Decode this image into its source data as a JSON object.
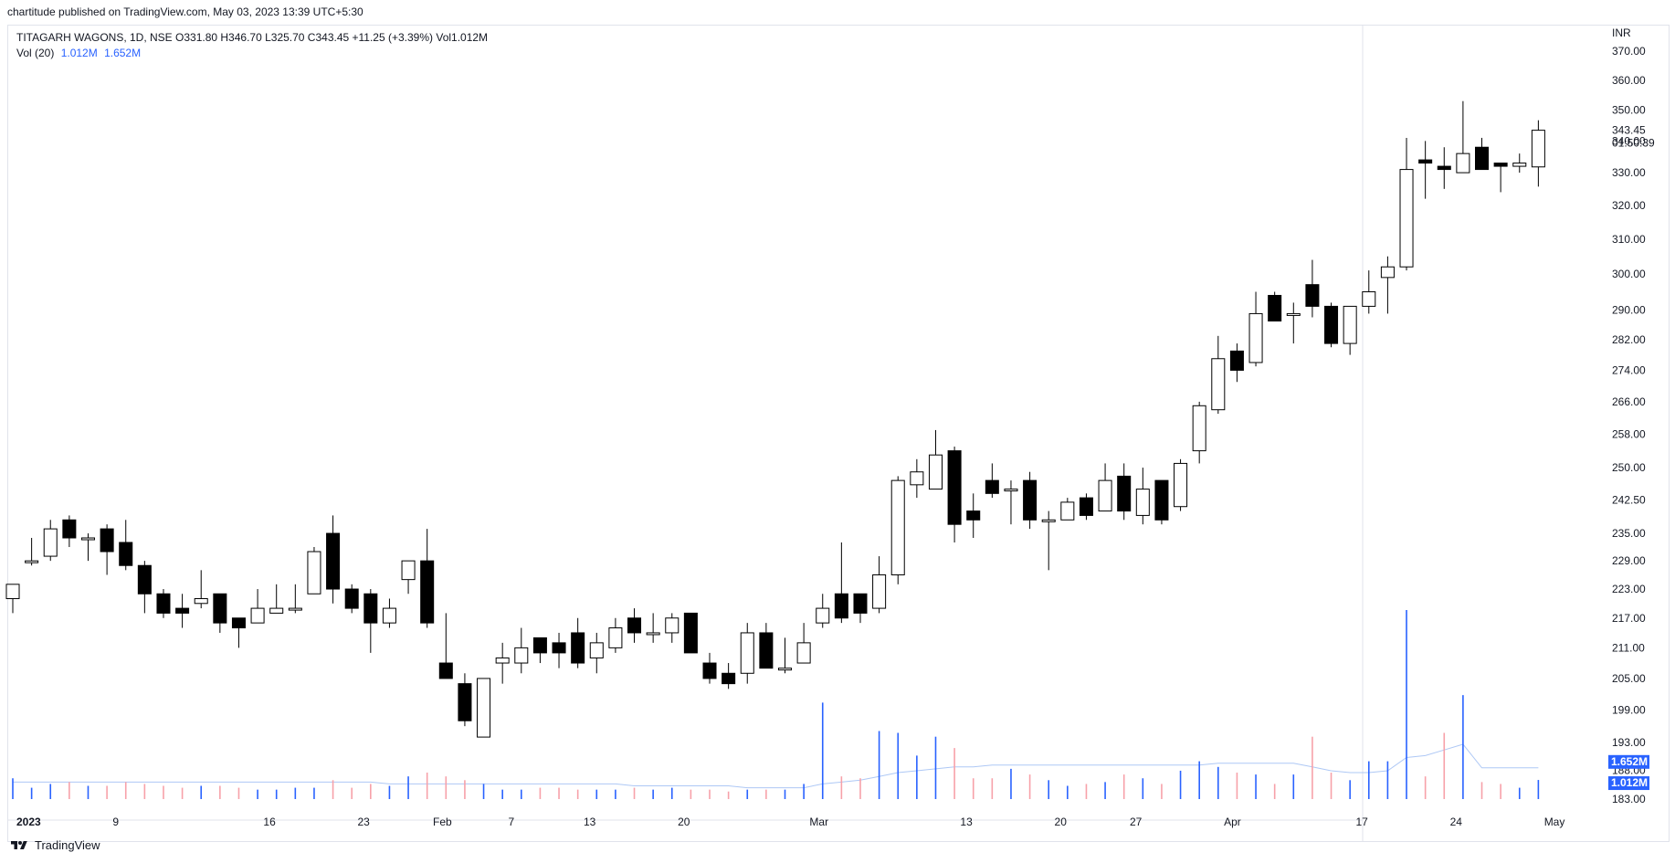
{
  "header": {
    "publish_line": "chartitude published on TradingView.com, May 03, 2023 13:39 UTC+5:30",
    "symbol_line": "TITAGARH WAGONS, 1D, NSE  O331.80  H346.70  L325.70  C343.45  +11.25 (+3.39%)  Vol1.012M",
    "vol_label": "Vol (20)",
    "vol_value_1": "1.012M",
    "vol_value_2": "1.652M"
  },
  "price_axis": {
    "currency": "INR",
    "labels": [
      "370.00",
      "360.00",
      "350.00",
      "340.00",
      "330.00",
      "320.00",
      "310.00",
      "300.00",
      "290.00",
      "282.00",
      "274.00",
      "266.00",
      "258.00",
      "250.00",
      "242.50",
      "235.00",
      "229.00",
      "223.00",
      "217.00",
      "211.00",
      "205.00",
      "199.00",
      "193.00",
      "188.00",
      "183.00"
    ],
    "last_price": "343.45",
    "countdown": "01:50:39",
    "vol_ma_badge": "1.652M",
    "vol_badge": "1.012M"
  },
  "time_axis": {
    "labels": [
      "2023",
      "9",
      "16",
      "23",
      "Feb",
      "7",
      "13",
      "20",
      "Mar",
      "13",
      "20",
      "27",
      "Apr",
      "17",
      "24",
      "May"
    ]
  },
  "footer": {
    "brand": "TradingView"
  },
  "colors": {
    "up_body": "#ffffff",
    "down_body": "#000000",
    "wick": "#000000",
    "vol_up": "#2962ff",
    "vol_down": "#f7a1a9",
    "vol_ma": "#aec8f5",
    "badge": "#2962ff"
  },
  "chart_data": {
    "type": "candlestick",
    "title": "TITAGARH WAGONS, 1D, NSE",
    "y_scale": "log",
    "ylim": [
      183,
      370
    ],
    "series": [
      {
        "name": "TITAGARH WAGONS",
        "candles": [
          {
            "date": "2022-12-30",
            "o": 221,
            "h": 224,
            "l": 218,
            "c": 224
          },
          {
            "date": "2023-01-02",
            "o": 229,
            "h": 234,
            "l": 228,
            "c": 229
          },
          {
            "date": "2023-01-03",
            "o": 230,
            "h": 238,
            "l": 229,
            "c": 236
          },
          {
            "date": "2023-01-04",
            "o": 238,
            "h": 239,
            "l": 232,
            "c": 234
          },
          {
            "date": "2023-01-05",
            "o": 234,
            "h": 235,
            "l": 229,
            "c": 234
          },
          {
            "date": "2023-01-06",
            "o": 236,
            "h": 237,
            "l": 226,
            "c": 231
          },
          {
            "date": "2023-01-09",
            "o": 233,
            "h": 238,
            "l": 227,
            "c": 228
          },
          {
            "date": "2023-01-10",
            "o": 228,
            "h": 229,
            "l": 218,
            "c": 222
          },
          {
            "date": "2023-01-11",
            "o": 222,
            "h": 223,
            "l": 217,
            "c": 218
          },
          {
            "date": "2023-01-12",
            "o": 219,
            "h": 222,
            "l": 215,
            "c": 218
          },
          {
            "date": "2023-01-13",
            "o": 220,
            "h": 227,
            "l": 219,
            "c": 221
          },
          {
            "date": "2023-01-16",
            "o": 222,
            "h": 222,
            "l": 214,
            "c": 216
          },
          {
            "date": "2023-01-17",
            "o": 217,
            "h": 217,
            "l": 211,
            "c": 215
          },
          {
            "date": "2023-01-18",
            "o": 216,
            "h": 223,
            "l": 216,
            "c": 219
          },
          {
            "date": "2023-01-19",
            "o": 218,
            "h": 224,
            "l": 218,
            "c": 219
          },
          {
            "date": "2023-01-20",
            "o": 219,
            "h": 224,
            "l": 218,
            "c": 219
          },
          {
            "date": "2023-01-23",
            "o": 222,
            "h": 232,
            "l": 222,
            "c": 231
          },
          {
            "date": "2023-01-24",
            "o": 235,
            "h": 239,
            "l": 220,
            "c": 223
          },
          {
            "date": "2023-01-25",
            "o": 223,
            "h": 224,
            "l": 218,
            "c": 219
          },
          {
            "date": "2023-01-27",
            "o": 222,
            "h": 223,
            "l": 210,
            "c": 216
          },
          {
            "date": "2023-01-30",
            "o": 216,
            "h": 221,
            "l": 215,
            "c": 219
          },
          {
            "date": "2023-01-31",
            "o": 225,
            "h": 229,
            "l": 222,
            "c": 229
          },
          {
            "date": "2023-02-01",
            "o": 229,
            "h": 236,
            "l": 215,
            "c": 216
          },
          {
            "date": "2023-02-02",
            "o": 208,
            "h": 218,
            "l": 206,
            "c": 205
          },
          {
            "date": "2023-02-03",
            "o": 204,
            "h": 206,
            "l": 196,
            "c": 197
          },
          {
            "date": "2023-02-06",
            "o": 194,
            "h": 205,
            "l": 194,
            "c": 205
          },
          {
            "date": "2023-02-07",
            "o": 208,
            "h": 212,
            "l": 204,
            "c": 209
          },
          {
            "date": "2023-02-08",
            "o": 208,
            "h": 215,
            "l": 206,
            "c": 211
          },
          {
            "date": "2023-02-09",
            "o": 213,
            "h": 213,
            "l": 208,
            "c": 210
          },
          {
            "date": "2023-02-10",
            "o": 212,
            "h": 214,
            "l": 207,
            "c": 210
          },
          {
            "date": "2023-02-13",
            "o": 214,
            "h": 217,
            "l": 207,
            "c": 208
          },
          {
            "date": "2023-02-14",
            "o": 209,
            "h": 214,
            "l": 206,
            "c": 212
          },
          {
            "date": "2023-02-15",
            "o": 211,
            "h": 217,
            "l": 210,
            "c": 215
          },
          {
            "date": "2023-02-16",
            "o": 217,
            "h": 219,
            "l": 212,
            "c": 214
          },
          {
            "date": "2023-02-17",
            "o": 214,
            "h": 218,
            "l": 212,
            "c": 214
          },
          {
            "date": "2023-02-20",
            "o": 214,
            "h": 218,
            "l": 212,
            "c": 217
          },
          {
            "date": "2023-02-21",
            "o": 218,
            "h": 218,
            "l": 210,
            "c": 210
          },
          {
            "date": "2023-02-22",
            "o": 208,
            "h": 210,
            "l": 204,
            "c": 205
          },
          {
            "date": "2023-02-23",
            "o": 206,
            "h": 208,
            "l": 203,
            "c": 204
          },
          {
            "date": "2023-02-24",
            "o": 206,
            "h": 216,
            "l": 204,
            "c": 214
          },
          {
            "date": "2023-02-27",
            "o": 214,
            "h": 216,
            "l": 207,
            "c": 207
          },
          {
            "date": "2023-02-28",
            "o": 207,
            "h": 213,
            "l": 206,
            "c": 207
          },
          {
            "date": "2023-03-01",
            "o": 208,
            "h": 216,
            "l": 208,
            "c": 212
          },
          {
            "date": "2023-03-02",
            "o": 216,
            "h": 222,
            "l": 215,
            "c": 219
          },
          {
            "date": "2023-03-03",
            "o": 222,
            "h": 233,
            "l": 216,
            "c": 217
          },
          {
            "date": "2023-03-06",
            "o": 222,
            "h": 222,
            "l": 216,
            "c": 218
          },
          {
            "date": "2023-03-08",
            "o": 219,
            "h": 230,
            "l": 218,
            "c": 226
          },
          {
            "date": "2023-03-09",
            "o": 226,
            "h": 248,
            "l": 224,
            "c": 247
          },
          {
            "date": "2023-03-10",
            "o": 246,
            "h": 252,
            "l": 243,
            "c": 249
          },
          {
            "date": "2023-03-13",
            "o": 245,
            "h": 259,
            "l": 245,
            "c": 253
          },
          {
            "date": "2023-03-14",
            "o": 254,
            "h": 255,
            "l": 233,
            "c": 237
          },
          {
            "date": "2023-03-15",
            "o": 240,
            "h": 244,
            "l": 234,
            "c": 238
          },
          {
            "date": "2023-03-16",
            "o": 247,
            "h": 251,
            "l": 243,
            "c": 244
          },
          {
            "date": "2023-03-17",
            "o": 245,
            "h": 247,
            "l": 237,
            "c": 245
          },
          {
            "date": "2023-03-20",
            "o": 247,
            "h": 249,
            "l": 236,
            "c": 238
          },
          {
            "date": "2023-03-21",
            "o": 238,
            "h": 240,
            "l": 227,
            "c": 238
          },
          {
            "date": "2023-03-22",
            "o": 238,
            "h": 243,
            "l": 238,
            "c": 242
          },
          {
            "date": "2023-03-23",
            "o": 243,
            "h": 244,
            "l": 238,
            "c": 239
          },
          {
            "date": "2023-03-24",
            "o": 240,
            "h": 251,
            "l": 240,
            "c": 247
          },
          {
            "date": "2023-03-27",
            "o": 248,
            "h": 251,
            "l": 238,
            "c": 240
          },
          {
            "date": "2023-03-28",
            "o": 239,
            "h": 250,
            "l": 237,
            "c": 245
          },
          {
            "date": "2023-03-29",
            "o": 247,
            "h": 247,
            "l": 237,
            "c": 238
          },
          {
            "date": "2023-03-31",
            "o": 241,
            "h": 252,
            "l": 240,
            "c": 251
          },
          {
            "date": "2023-04-03",
            "o": 254,
            "h": 266,
            "l": 251,
            "c": 265
          },
          {
            "date": "2023-04-05",
            "o": 264,
            "h": 283,
            "l": 263,
            "c": 277
          },
          {
            "date": "2023-04-06",
            "o": 279,
            "h": 281,
            "l": 271,
            "c": 274
          },
          {
            "date": "2023-04-10",
            "o": 276,
            "h": 295,
            "l": 275,
            "c": 289
          },
          {
            "date": "2023-04-11",
            "o": 294,
            "h": 295,
            "l": 287,
            "c": 287
          },
          {
            "date": "2023-04-12",
            "o": 289,
            "h": 292,
            "l": 281,
            "c": 289
          },
          {
            "date": "2023-04-13",
            "o": 297,
            "h": 304,
            "l": 288,
            "c": 291
          },
          {
            "date": "2023-04-17",
            "o": 291,
            "h": 292,
            "l": 280,
            "c": 281
          },
          {
            "date": "2023-04-18",
            "o": 281,
            "h": 291,
            "l": 278,
            "c": 291
          },
          {
            "date": "2023-04-19",
            "o": 291,
            "h": 301,
            "l": 289,
            "c": 295
          },
          {
            "date": "2023-04-20",
            "o": 299,
            "h": 305,
            "l": 289,
            "c": 302
          },
          {
            "date": "2023-04-21",
            "o": 302,
            "h": 341,
            "l": 301,
            "c": 331
          },
          {
            "date": "2023-04-24",
            "o": 334,
            "h": 340,
            "l": 322,
            "c": 333
          },
          {
            "date": "2023-04-25",
            "o": 332,
            "h": 338,
            "l": 325,
            "c": 331
          },
          {
            "date": "2023-04-26",
            "o": 330,
            "h": 353,
            "l": 330,
            "c": 336
          },
          {
            "date": "2023-04-27",
            "o": 338,
            "h": 341,
            "l": 331,
            "c": 331
          },
          {
            "date": "2023-04-28",
            "o": 333,
            "h": 333,
            "l": 324,
            "c": 332
          },
          {
            "date": "2023-05-02",
            "o": 332,
            "h": 336,
            "l": 330,
            "c": 333
          },
          {
            "date": "2023-05-03",
            "o": 331.8,
            "h": 346.7,
            "l": 325.7,
            "c": 343.45
          }
        ]
      }
    ],
    "volume": {
      "name": "Vol (20)",
      "values_m": [
        1.1,
        0.6,
        0.8,
        0.9,
        0.7,
        0.7,
        0.9,
        0.8,
        0.7,
        0.6,
        0.7,
        0.7,
        0.6,
        0.5,
        0.5,
        0.6,
        0.6,
        1.0,
        0.6,
        0.8,
        0.7,
        1.2,
        1.4,
        1.2,
        1.0,
        0.8,
        0.5,
        0.5,
        0.6,
        0.6,
        0.5,
        0.5,
        0.5,
        0.6,
        0.5,
        0.6,
        0.5,
        0.5,
        0.4,
        0.5,
        0.5,
        0.5,
        0.8,
        5.1,
        1.2,
        1.1,
        3.6,
        3.5,
        2.3,
        3.3,
        2.7,
        1.1,
        1.1,
        1.6,
        1.3,
        1.0,
        0.7,
        0.8,
        0.9,
        1.3,
        1.1,
        0.8,
        1.5,
        2.0,
        1.7,
        1.4,
        1.3,
        0.8,
        1.3,
        3.3,
        1.4,
        1.0,
        2.0,
        2.0,
        10.0,
        1.2,
        3.5,
        5.5,
        0.9,
        0.8,
        0.6,
        1.012
      ],
      "ma_m": [
        0.9,
        0.9,
        0.9,
        0.9,
        0.9,
        0.9,
        0.9,
        0.9,
        0.9,
        0.9,
        0.9,
        0.9,
        0.9,
        0.9,
        0.9,
        0.9,
        0.9,
        0.9,
        0.9,
        0.9,
        0.8,
        0.8,
        0.8,
        0.8,
        0.8,
        0.8,
        0.8,
        0.8,
        0.8,
        0.8,
        0.8,
        0.8,
        0.8,
        0.7,
        0.7,
        0.7,
        0.7,
        0.7,
        0.7,
        0.6,
        0.6,
        0.6,
        0.6,
        0.8,
        0.9,
        1.0,
        1.2,
        1.4,
        1.5,
        1.6,
        1.7,
        1.7,
        1.8,
        1.8,
        1.8,
        1.8,
        1.8,
        1.8,
        1.8,
        1.8,
        1.8,
        1.8,
        1.8,
        1.8,
        1.9,
        1.9,
        1.9,
        1.9,
        1.9,
        1.7,
        1.5,
        1.4,
        1.4,
        1.5,
        2.2,
        2.3,
        2.6,
        2.9,
        1.652,
        1.652,
        1.652,
        1.652
      ]
    }
  }
}
